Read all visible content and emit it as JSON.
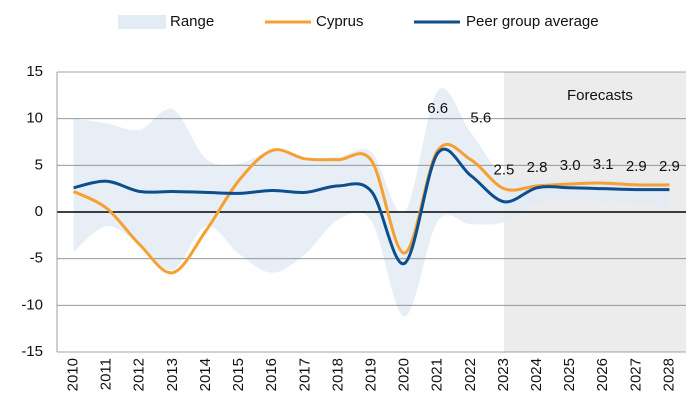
{
  "chart_data": {
    "type": "line",
    "categories": [
      "2010",
      "2011",
      "2012",
      "2013",
      "2014",
      "2015",
      "2016",
      "2017",
      "2018",
      "2019",
      "2020",
      "2021",
      "2022",
      "2023",
      "2024",
      "2025",
      "2026",
      "2027",
      "2028"
    ],
    "range": {
      "name": "Range",
      "color": "#e3ebf5",
      "high": [
        10,
        9.5,
        8.8,
        11,
        5.7,
        5.2,
        6.5,
        5.7,
        5.9,
        6.4,
        0,
        13,
        8.5,
        3.8,
        3.5,
        3.4,
        3.5,
        3.4,
        3.3
      ],
      "low": [
        -4.3,
        -1.5,
        -3.5,
        -6.2,
        -1.5,
        -4.5,
        -6.5,
        -4.5,
        -0.8,
        -1.0,
        -11.2,
        -1.0,
        -1.3,
        -1.1,
        0.9,
        1.2,
        1.1,
        1.0,
        0.2
      ]
    },
    "series": [
      {
        "name": "Cyprus",
        "color": "#f5a030",
        "values": [
          2.2,
          0.4,
          -3.5,
          -6.5,
          -2.0,
          3.4,
          6.6,
          5.7,
          5.6,
          5.5,
          -4.4,
          6.6,
          5.6,
          2.5,
          2.8,
          3.0,
          3.1,
          2.9,
          2.9
        ],
        "value_labels": [
          null,
          null,
          null,
          null,
          null,
          null,
          null,
          null,
          null,
          null,
          null,
          "6.6",
          "5.6",
          "2.5",
          "2.8",
          "3.0",
          "3.1",
          "2.9",
          "2.9"
        ]
      },
      {
        "name": "Peer group average",
        "color": "#0d4e8c",
        "values": [
          2.6,
          3.3,
          2.2,
          2.2,
          2.1,
          2.0,
          2.3,
          2.1,
          2.8,
          2.2,
          -5.5,
          6.3,
          3.9,
          1.1,
          2.6,
          2.6,
          2.5,
          2.4,
          2.4
        ]
      }
    ],
    "forecast_start": "2023",
    "forecast_label": "Forecasts",
    "forecast_color": "#ececec",
    "ylim": [
      -15,
      15
    ],
    "yticks": [
      -15,
      -10,
      -5,
      0,
      5,
      10,
      15
    ],
    "grid": true
  }
}
